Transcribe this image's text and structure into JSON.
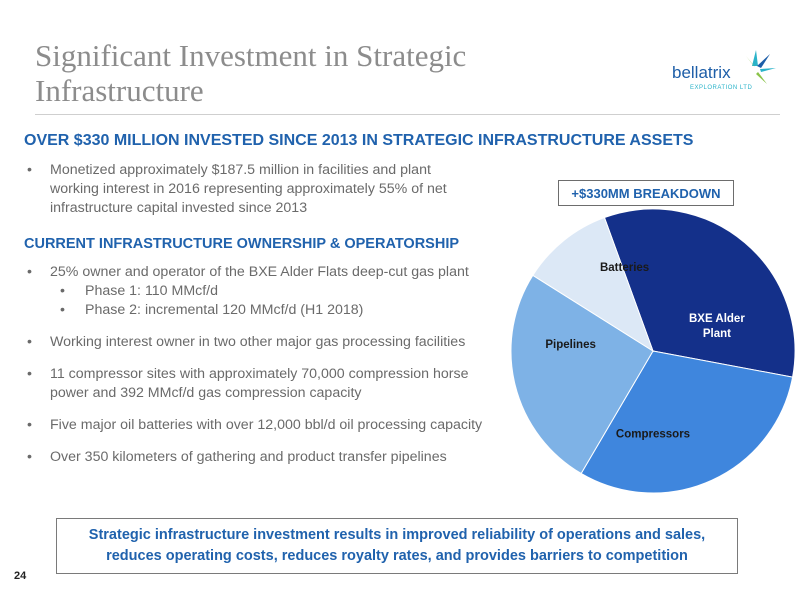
{
  "title": "Significant Investment in Strategic Infrastructure",
  "logo": {
    "name": "bellatrix",
    "tagline": "EXPLORATION LTD",
    "icon": "star-burst-icon",
    "colors": [
      "#1d5ea8",
      "#2ab3c9",
      "#8bc34a"
    ]
  },
  "headline": "OVER $330 MILLION INVESTED SINCE 2013 IN STRATEGIC INFRASTRUCTURE ASSETS",
  "intro_bullets": [
    "Monetized approximately $187.5 million in facilities and plant working interest in 2016 representing approximately 55% of net infrastructure capital invested since 2013"
  ],
  "section_heading": "CURRENT INFRASTRUCTURE OWNERSHIP & OPERATORSHIP",
  "ownership_bullets": [
    {
      "text": "25% owner and operator of the BXE Alder Flats deep-cut gas plant",
      "sub": [
        "Phase 1: 110 MMcf/d",
        "Phase 2: incremental 120 MMcf/d (H1 2018)"
      ]
    },
    {
      "text": "Working interest owner in two other major gas processing facilities"
    },
    {
      "text": "11 compressor sites with approximately 70,000 compression horse power and 392 MMcf/d gas compression capacity"
    },
    {
      "text": "Five major oil batteries with over 12,000 bbl/d oil processing capacity"
    },
    {
      "text": "Over 350 kilometers of gathering and product transfer pipelines"
    }
  ],
  "breakdown_label": "+$330MM BREAKDOWN",
  "chart_data": {
    "type": "pie",
    "title": "+$330MM BREAKDOWN",
    "slices": [
      {
        "label": "BXE Alder Plant",
        "value": 33.5,
        "color": "#14308a",
        "text_color": "#ffffff"
      },
      {
        "label": "Compressors",
        "value": 30.5,
        "color": "#3f86dd",
        "text_color": "#1a1a1a"
      },
      {
        "label": "Pipelines",
        "value": 25.5,
        "color": "#7eb2e6",
        "text_color": "#1a1a1a"
      },
      {
        "label": "Batteries",
        "value": 10.5,
        "color": "#dce8f6",
        "text_color": "#1a1a1a"
      }
    ]
  },
  "callout": [
    "Strategic infrastructure investment results in improved reliability of operations and sales,",
    "reduces operating costs, reduces royalty rates, and provides barriers to competition"
  ],
  "page_number": "24"
}
